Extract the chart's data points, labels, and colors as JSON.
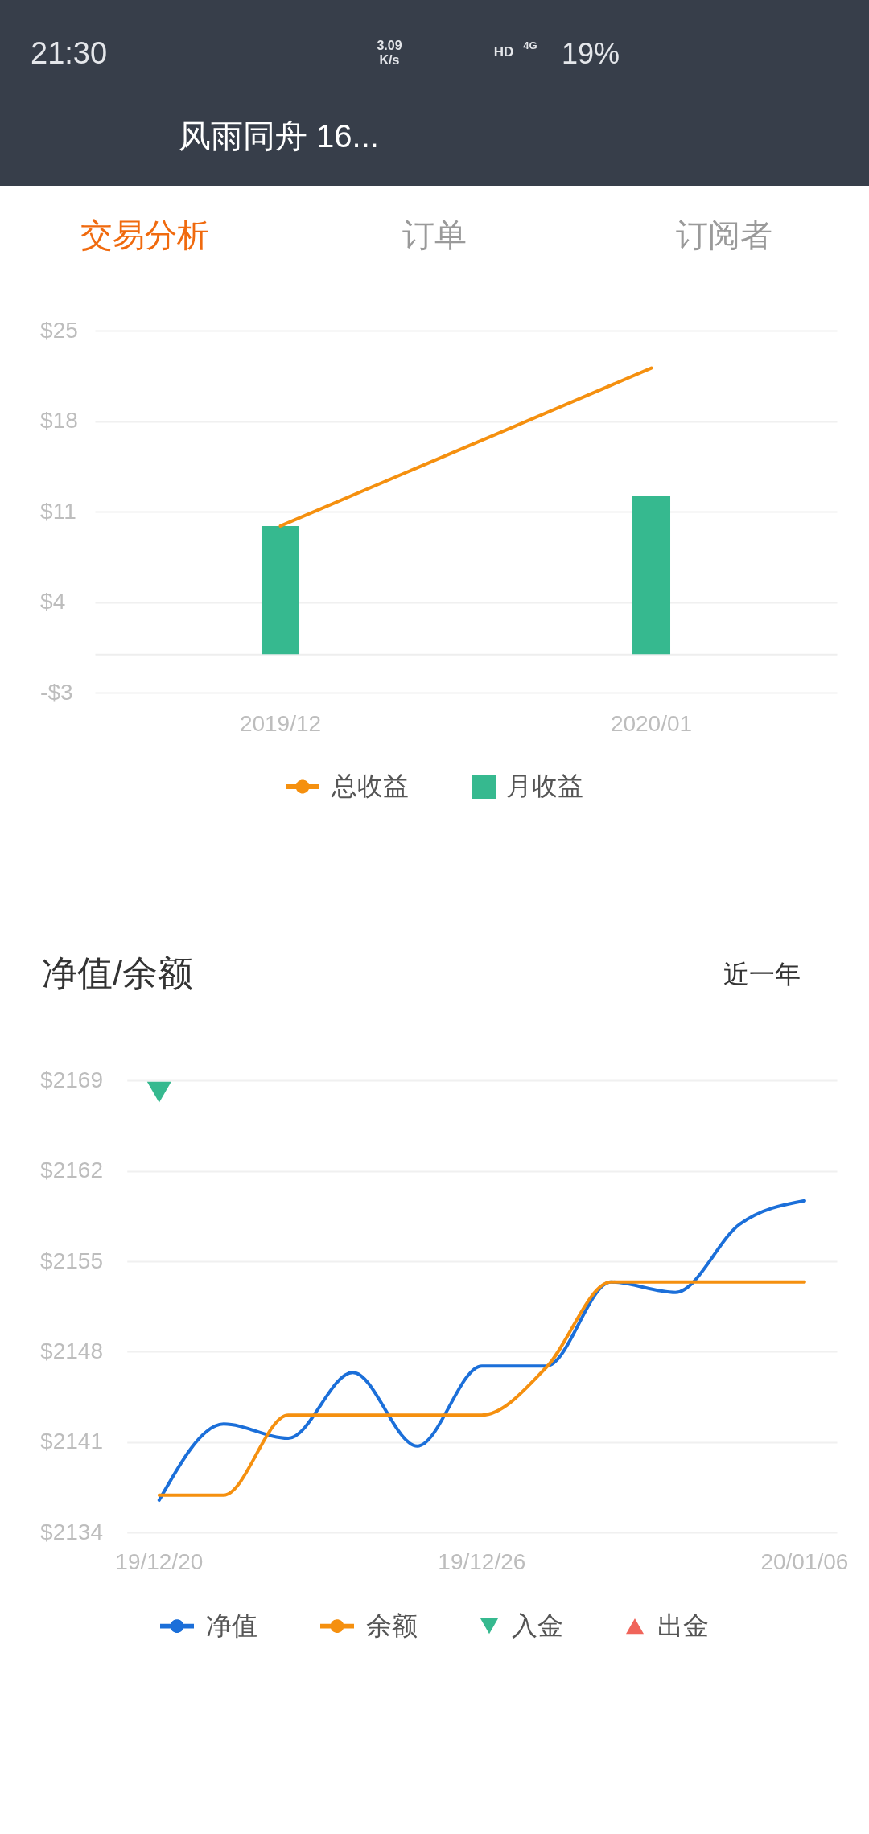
{
  "chart_data": [
    {
      "type": "other",
      "title": "风雨同舟 16...",
      "annotations": [
        "21:30",
        "3.09",
        "K/s",
        "HD",
        "4G",
        "19%",
        "交易分析",
        "订单",
        "订阅者"
      ]
    },
    {
      "type": "bar",
      "categories": [
        "2019/12",
        "2020/01"
      ],
      "series": [
        {
          "name": "总收益",
          "type": "line",
          "color": "#f5900f",
          "values": [
            9.9,
            22.1
          ]
        },
        {
          "name": "月收益",
          "type": "bar",
          "color": "#36b98f",
          "values": [
            9.9,
            12.2
          ]
        }
      ],
      "ylim": [
        -3,
        25
      ],
      "yticks": [
        {
          "value": -3,
          "label": "-$3"
        },
        {
          "value": 4,
          "label": "$4"
        },
        {
          "value": 11,
          "label": "$11"
        },
        {
          "value": 18,
          "label": "$18"
        },
        {
          "value": 25,
          "label": "$25"
        }
      ],
      "grid": "y",
      "legend": "bottom"
    },
    {
      "type": "line",
      "title": "净值/余额",
      "annotations": [
        "近一年"
      ],
      "categories": [
        "19/12/20",
        null,
        null,
        null,
        null,
        "19/12/26",
        null,
        null,
        null,
        null,
        "20/01/06"
      ],
      "series": [
        {
          "name": "净值",
          "color": "#1b6fd9",
          "values": [
            2136.5,
            2142.4,
            2141.3,
            2146.4,
            2140.7,
            2146.9,
            2146.9,
            2153.4,
            2152.6,
            2157.9,
            2159.7
          ]
        },
        {
          "name": "余额",
          "color": "#f5900f",
          "values": [
            2136.9,
            2136.9,
            2143.1,
            2143.1,
            2143.1,
            2143.1,
            2146.8,
            2153.4,
            2153.4,
            2153.4,
            2153.4
          ]
        },
        {
          "name": "入金",
          "type": "scatter",
          "marker": "triangle-down",
          "color": "#36b98f",
          "values": [
            2168.1,
            null,
            null,
            null,
            null,
            null,
            null,
            null,
            null,
            null,
            null
          ]
        },
        {
          "name": "出金",
          "type": "scatter",
          "marker": "triangle",
          "color": "#f0645a",
          "values": [
            null,
            null,
            null,
            null,
            null,
            null,
            null,
            null,
            null,
            null,
            null
          ]
        }
      ],
      "ylim": [
        2134,
        2169
      ],
      "yticks": [
        {
          "value": 2134,
          "label": "$2134"
        },
        {
          "value": 2141,
          "label": "$2141"
        },
        {
          "value": 2148,
          "label": "$2148"
        },
        {
          "value": 2155,
          "label": "$2155"
        },
        {
          "value": 2162,
          "label": "$2162"
        },
        {
          "value": 2169,
          "label": "$2169"
        }
      ],
      "grid": "y",
      "legend": "bottom"
    }
  ]
}
